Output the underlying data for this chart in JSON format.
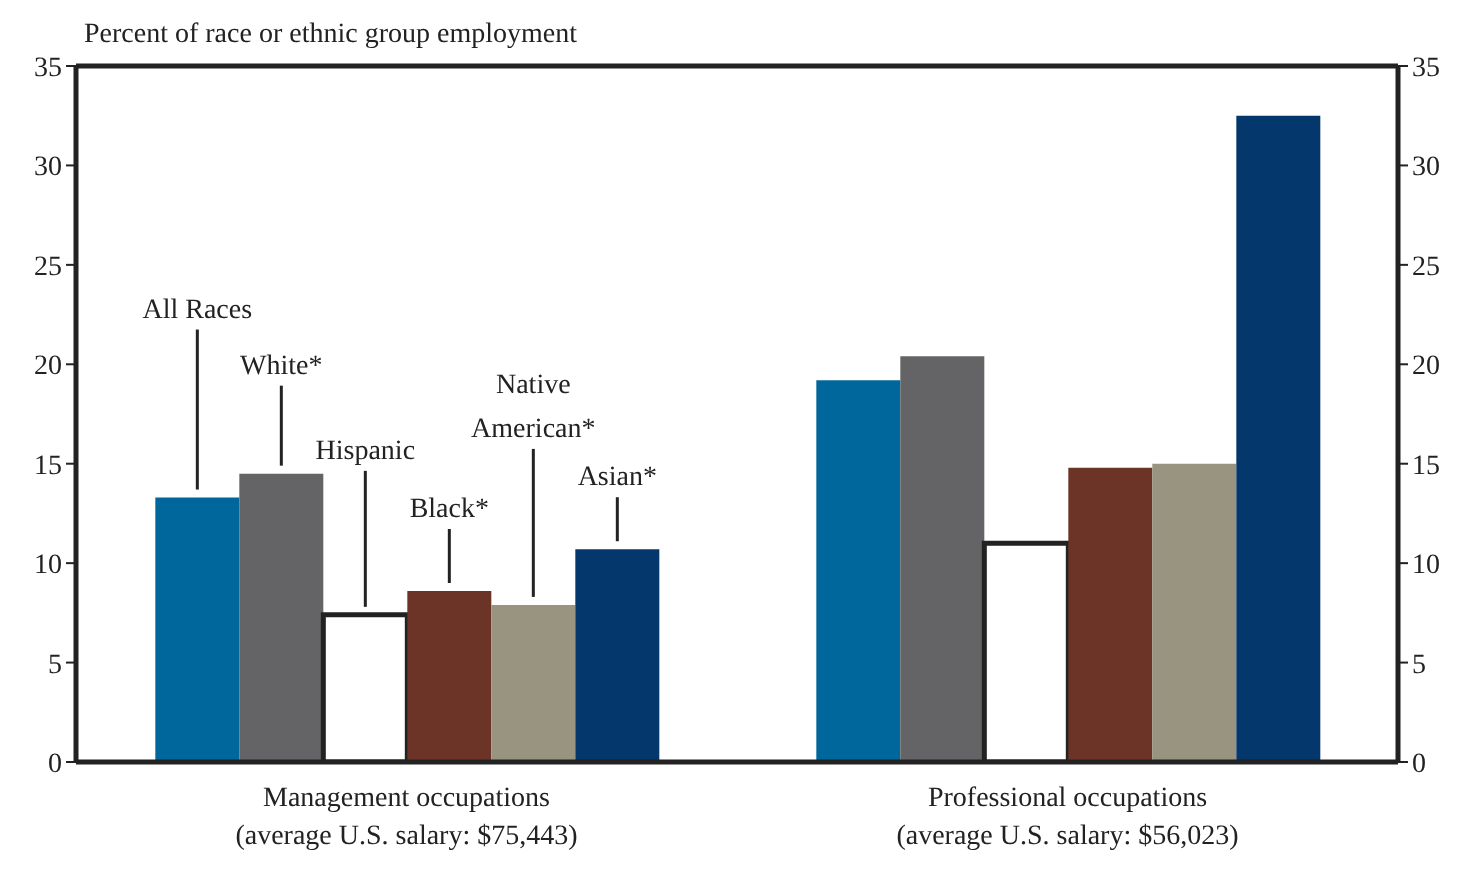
{
  "chart_data": {
    "type": "bar",
    "ylabel": "Percent of race or ethnic group employment",
    "categories": [
      "Management occupations\n(average U.S. salary: $75,443)",
      "Professional occupations\n(average U.S. salary: $56,023)"
    ],
    "series": [
      {
        "name": "All Races",
        "color": "#00679c",
        "values": [
          13.3,
          19.2
        ]
      },
      {
        "name": "White*",
        "color": "#646466",
        "values": [
          14.5,
          20.4
        ]
      },
      {
        "name": "Hispanic",
        "color": "#ffffff",
        "values": [
          7.4,
          11.0
        ]
      },
      {
        "name": "Black*",
        "color": "#6c3427",
        "values": [
          8.6,
          14.8
        ]
      },
      {
        "name": "Native American*",
        "color": "#98947f",
        "values": [
          7.9,
          15.0
        ]
      },
      {
        "name": "Asian*",
        "color": "#04376b",
        "values": [
          10.7,
          32.5
        ]
      }
    ],
    "ylim": [
      0,
      35
    ],
    "yticks": [
      0,
      5,
      10,
      15,
      20,
      25,
      30,
      35
    ],
    "y2lim": [
      0,
      35
    ],
    "y2ticks": [
      0,
      5,
      10,
      15,
      20,
      25,
      30,
      35
    ],
    "grid": false,
    "legend": false
  }
}
